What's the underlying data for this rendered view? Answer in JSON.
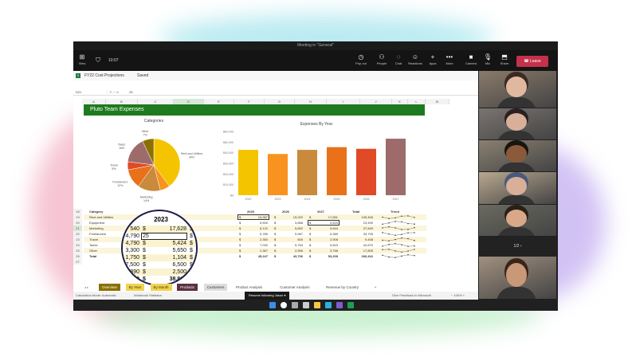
{
  "window": {
    "title": "Meeting in \"General\""
  },
  "toolbar": {
    "view": "View",
    "timer": "10:07",
    "pop_out": "Pop out",
    "people": "People",
    "chat": "Chat",
    "reactions": "Reactions",
    "apps": "Apps",
    "more": "More",
    "camera": "Camera",
    "mic": "Mic",
    "share": "Share",
    "leave": "Leave"
  },
  "excel": {
    "file_name": "FY22 Cost Projections",
    "saved": "Saved",
    "name_box": "D21",
    "formula": "25",
    "columns": [
      "A",
      "B",
      "C",
      "D",
      "E",
      "F",
      "G",
      "H",
      "I",
      "J",
      "K",
      "L",
      "M"
    ],
    "rows": [
      "18",
      "19",
      "20",
      "21",
      "22",
      "23",
      "24",
      "25",
      "26",
      "27"
    ],
    "banner": "Pluto Team Expenses",
    "table": {
      "headers": [
        "Category",
        "2025",
        "2026",
        "2027",
        "Total",
        "Trend"
      ],
      "categories": [
        "Rent and Utilities",
        "Equipment",
        "Marketing",
        "Freelancers",
        "Travel",
        "Taxes",
        "Other",
        "Total"
      ],
      "y2025": [
        "15,987",
        "5,500",
        "6,122",
        "5,789",
        "2,350",
        "7,032",
        "2,367",
        "45,247"
      ],
      "y2026": [
        "19,020",
        "3,868",
        "5,892",
        "5,967",
        "600",
        "5,763",
        "2,556",
        "43,706"
      ],
      "y2027": [
        "17,651",
        "4,620",
        "9,844",
        "5,389",
        "2,908",
        "9,823",
        "3,768",
        "53,209"
      ],
      "total": [
        "105,406",
        "23,490",
        "37,849",
        "33,795",
        "9,408",
        "42,670",
        "17,805",
        "266,416"
      ]
    },
    "magnifier": {
      "header": "2023",
      "rows": [
        [
          "540",
          "$",
          "17,628",
          "$"
        ],
        [
          "4,790",
          "25",
          "",
          "$"
        ],
        [
          "4,790",
          "$",
          "5,424",
          "$"
        ],
        [
          "3,300",
          "$",
          "5,650",
          "$"
        ],
        [
          "1,750",
          "$",
          "1,104",
          "$"
        ],
        [
          "7,500",
          "$",
          "6,500",
          "$"
        ],
        [
          "890",
          "$",
          "2,500",
          "$"
        ],
        [
          "0",
          "$",
          "38,806",
          "$"
        ]
      ]
    },
    "sheet_tabs": [
      {
        "label": "Overview",
        "bg": "#8b7000",
        "fg": "#fff"
      },
      {
        "label": "By Year",
        "bg": "#f2d24b",
        "fg": "#333"
      },
      {
        "label": "By Month",
        "bg": "#f2d24b",
        "fg": "#333"
      },
      {
        "label": "Products",
        "bg": "#5c3040",
        "fg": "#fff"
      },
      {
        "label": "Customers",
        "bg": "#ddd",
        "fg": "#333"
      },
      {
        "label": "Product Analysis",
        "bg": "transparent",
        "fg": "#444"
      },
      {
        "label": "Customer Analysis",
        "bg": "transparent",
        "fg": "#444"
      },
      {
        "label": "Revenue by Country",
        "bg": "transparent",
        "fg": "#444"
      },
      {
        "label": "+",
        "bg": "transparent",
        "fg": "#444"
      }
    ],
    "status": {
      "calc_mode": "Calculation Mode: Automatic",
      "workbook_stats": "Workbook Statistics",
      "following": "Resume following Jason",
      "feedback": "Give Feedback to Microsoft",
      "zoom": "100%"
    }
  },
  "chart_data": [
    {
      "type": "pie",
      "title": "Categories",
      "labels": [
        "Rent and Utilities",
        "Equipment",
        "Marketing",
        "Freelancers",
        "Travel",
        "Taxes",
        "Other"
      ],
      "values": [
        40,
        6,
        14,
        12,
        5,
        16,
        7
      ],
      "value_labels": [
        "40%",
        "",
        "14%",
        "12%",
        "5%",
        "16%",
        "7%"
      ],
      "colors": [
        "#f5c400",
        "#f7931e",
        "#c98a3c",
        "#e8711a",
        "#e04a27",
        "#9e6b6b",
        "#8b7000"
      ]
    },
    {
      "type": "bar",
      "title": "Expenses By Year",
      "categories": [
        "2022",
        "2023",
        "2024",
        "2025",
        "2026",
        "2027"
      ],
      "values": [
        42700,
        38806,
        42700,
        45247,
        43706,
        53209
      ],
      "ylim": [
        0,
        60000
      ],
      "yticks": [
        "$0",
        "$10,000",
        "$20,000",
        "$30,000",
        "$40,000",
        "$50,000",
        "$60,000"
      ],
      "colors": [
        "#f5c400",
        "#f7931e",
        "#c98a3c",
        "#e8711a",
        "#e04a27",
        "#9e6b6b"
      ],
      "grid": false
    }
  ],
  "participants": {
    "pager": "1/2",
    "tiles": [
      {
        "bg": "#8a7a6a",
        "skin": "#e0b8a0",
        "hair": "#3a2a22"
      },
      {
        "bg": "#7a7470",
        "skin": "#d8b09a",
        "hair": "#2a2020"
      },
      {
        "bg": "#8a8070",
        "skin": "#8a5a3a",
        "hair": "#1a1410"
      },
      {
        "bg": "#b8a890",
        "skin": "#d8b098",
        "hair": "#4a5a7a"
      },
      {
        "bg": "#6a6a60",
        "skin": "#d8a888",
        "hair": "#2a2018"
      },
      {
        "bg": "#a09080",
        "skin": "#c89878",
        "hair": "#3a2418"
      }
    ]
  }
}
